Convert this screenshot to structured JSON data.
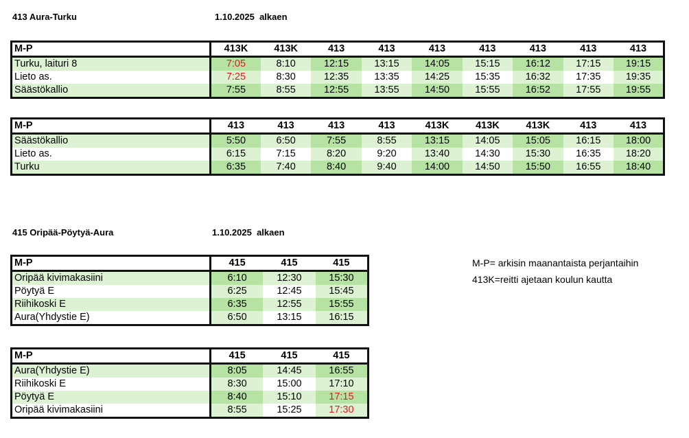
{
  "sections": [
    {
      "route": "413 Aura-Turku",
      "date": "1.10.2025",
      "date_suffix": "alkaen",
      "tables": [
        {
          "corner": "M-P",
          "headers": [
            "413K",
            "413K",
            "413",
            "413",
            "413",
            "413",
            "413",
            "413",
            "413"
          ],
          "rows": [
            {
              "stop": "Turku, laituri 8",
              "times": [
                "7:05",
                "8:10",
                "12:15",
                "13:15",
                "14:05",
                "15:15",
                "16:12",
                "17:15",
                "19:15"
              ],
              "red": [
                0
              ]
            },
            {
              "stop": "Lieto as.",
              "times": [
                "7:25",
                "8:30",
                "12:35",
                "13:35",
                "14:25",
                "15:35",
                "16:32",
                "17:35",
                "19:35"
              ],
              "red": [
                0
              ]
            },
            {
              "stop": "Säästökallio",
              "times": [
                "7:55",
                "8:55",
                "12:55",
                "13:55",
                "14:50",
                "15:55",
                "16:52",
                "17:55",
                "19:55"
              ],
              "red": []
            }
          ]
        },
        {
          "corner": "M-P",
          "headers": [
            "413",
            "413",
            "413",
            "413",
            "413K",
            "413K",
            "413K",
            "413",
            "413"
          ],
          "rows": [
            {
              "stop": "Säästökallio",
              "times": [
                "5:50",
                "6:50",
                "7:55",
                "8:55",
                "13:15",
                "14:05",
                "15:05",
                "16:15",
                "18:00"
              ],
              "red": []
            },
            {
              "stop": "Lieto as.",
              "times": [
                "6:15",
                "7:15",
                "8:20",
                "9:20",
                "13:40",
                "14:30",
                "15:30",
                "16:35",
                "18:20"
              ],
              "red": []
            },
            {
              "stop": "Turku",
              "times": [
                "6:35",
                "7:40",
                "8:40",
                "9:40",
                "14:00",
                "14:50",
                "15:50",
                "16:55",
                "18:40"
              ],
              "red": []
            }
          ]
        }
      ]
    },
    {
      "route": "415 Oripää-Pöytyä-Aura",
      "date": "1.10.2025",
      "date_suffix": "alkaen",
      "tables": [
        {
          "corner": "M-P",
          "headers": [
            "415",
            "415",
            "415"
          ],
          "rows": [
            {
              "stop": "Oripää kivimakasiini",
              "times": [
                "6:10",
                "12:30",
                "15:30"
              ],
              "red": []
            },
            {
              "stop": "Pöytyä E",
              "times": [
                "6:25",
                "12:45",
                "15:45"
              ],
              "red": []
            },
            {
              "stop": "Riihikoski E",
              "times": [
                "6:35",
                "12:55",
                "15:55"
              ],
              "red": []
            },
            {
              "stop": "Aura(Yhdystie E)",
              "times": [
                "6:50",
                "13:15",
                "16:15"
              ],
              "red": []
            }
          ]
        },
        {
          "corner": "M-P",
          "headers": [
            "415",
            "415",
            "415"
          ],
          "rows": [
            {
              "stop": "Aura(Yhdystie E)",
              "times": [
                "8:05",
                "14:45",
                "16:55"
              ],
              "red": []
            },
            {
              "stop": "Riihikoski E",
              "times": [
                "8:30",
                "15:00",
                "17:10"
              ],
              "red": []
            },
            {
              "stop": "Pöytyä E",
              "times": [
                "8:40",
                "15:10",
                "17:15"
              ],
              "red": [
                2
              ]
            },
            {
              "stop": "Oripää kivimakasiini",
              "times": [
                "8:55",
                "15:25",
                "17:30"
              ],
              "red": [
                2
              ]
            }
          ]
        }
      ]
    }
  ],
  "notes": [
    "M-P= arkisin maanantaista perjantaihin",
    "413K=reitti ajetaan koulun kautta"
  ],
  "colors": {
    "dark": "#b6e3a3",
    "light": "#dcf2d3",
    "red": "#e8161b"
  }
}
